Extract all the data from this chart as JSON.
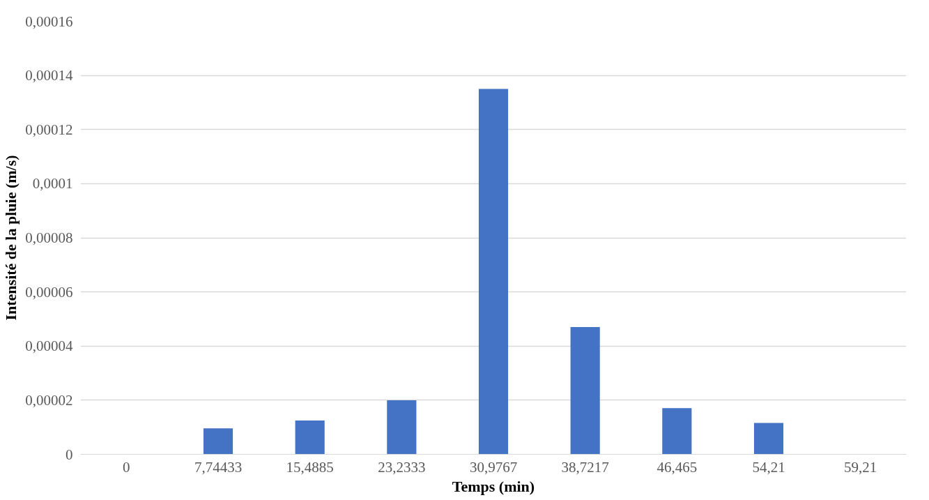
{
  "chart_data": {
    "type": "bar",
    "xlabel": "Temps (min)",
    "ylabel": "Intensité de la pluie (m/s)",
    "categories": [
      "0",
      "7,74433",
      "15,4885",
      "23,2333",
      "30,9767",
      "38,7217",
      "46,465",
      "54,21",
      "59,21"
    ],
    "values": [
      0,
      9.6e-06,
      1.25e-05,
      2e-05,
      0.000135,
      4.7e-05,
      1.71e-05,
      1.16e-05,
      0
    ],
    "color": "#4472c4",
    "ylim": [
      0,
      0.00016
    ],
    "yticks": [
      0,
      {
        "value": 2e-05,
        "label": "0,00002"
      },
      {
        "value": 4e-05,
        "label": "0,00004"
      },
      {
        "value": 6e-05,
        "label": "0,00006"
      },
      {
        "value": 8e-05,
        "label": "0,00008"
      },
      {
        "value": 0.0001,
        "label": "0,0001"
      },
      {
        "value": 0.00012,
        "label": "0,00012"
      },
      {
        "value": 0.00014,
        "label": "0,00014"
      },
      {
        "value": 0.00016,
        "label": "0,00016"
      }
    ],
    "grid": "y"
  }
}
